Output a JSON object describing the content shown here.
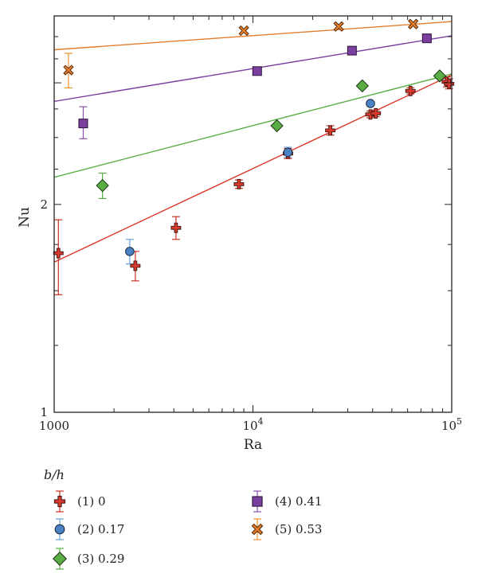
{
  "chart_data": {
    "type": "scatter",
    "title": "",
    "xlabel": "Ra",
    "ylabel": "Nu",
    "xscale": "log",
    "yscale": "log",
    "xlim": [
      1000,
      100000
    ],
    "ylim": [
      1,
      3.75
    ],
    "xticks": [
      {
        "value": 1000,
        "label": "1000"
      },
      {
        "value": 10000,
        "label": "10",
        "sup": "4"
      },
      {
        "value": 100000,
        "label": "10",
        "sup": "5"
      }
    ],
    "yticks": [
      {
        "value": 1,
        "label": "1"
      },
      {
        "value": 2,
        "label": "2"
      }
    ],
    "grid": false,
    "legend_title": "b/h",
    "legend_placement": "bottom",
    "series": [
      {
        "name": "(1) 0",
        "marker": "cross",
        "color": "#d93a2b",
        "err_color": "#c83224",
        "points": [
          {
            "x": 1050,
            "y": 1.7,
            "lo": 1.48,
            "hi": 1.9
          },
          {
            "x": 2560,
            "y": 1.63,
            "lo": 1.55,
            "hi": 1.71
          },
          {
            "x": 4100,
            "y": 1.85,
            "lo": 1.78,
            "hi": 1.92
          },
          {
            "x": 8500,
            "y": 2.14,
            "lo": 2.11,
            "hi": 2.17
          },
          {
            "x": 15000,
            "y": 2.37,
            "lo": 2.33,
            "hi": 2.41
          },
          {
            "x": 24500,
            "y": 2.56,
            "lo": 2.52,
            "hi": 2.6
          },
          {
            "x": 39000,
            "y": 2.7,
            "lo": 2.67,
            "hi": 2.73
          },
          {
            "x": 41500,
            "y": 2.71,
            "lo": 2.68,
            "hi": 2.74
          },
          {
            "x": 62000,
            "y": 2.92,
            "lo": 2.89,
            "hi": 2.95
          },
          {
            "x": 94500,
            "y": 3.01,
            "lo": 2.96,
            "hi": 3.06
          },
          {
            "x": 97000,
            "y": 2.99,
            "lo": 2.94,
            "hi": 3.04
          }
        ],
        "fit": {
          "x": [
            1000,
            100000
          ],
          "y": [
            1.65,
            3.08
          ]
        }
      },
      {
        "name": "(2) 0.17",
        "marker": "circle",
        "color": "#4b82c3",
        "err_color": "#6a9fd6",
        "points": [
          {
            "x": 2400,
            "y": 1.71,
            "lo": 1.64,
            "hi": 1.78
          },
          {
            "x": 15000,
            "y": 2.38,
            "lo": 2.34,
            "hi": 2.42
          },
          {
            "x": 39000,
            "y": 2.8,
            "lo": 2.78,
            "hi": 2.82
          }
        ]
      },
      {
        "name": "(3) 0.29",
        "marker": "diamond",
        "color": "#5aac44",
        "err_color": "#5aac44",
        "points": [
          {
            "x": 1750,
            "y": 2.13,
            "lo": 2.04,
            "hi": 2.22
          },
          {
            "x": 13200,
            "y": 2.6,
            "lo": 2.58,
            "hi": 2.62
          },
          {
            "x": 35500,
            "y": 2.97,
            "lo": 2.95,
            "hi": 2.99
          },
          {
            "x": 87000,
            "y": 3.07,
            "lo": 3.05,
            "hi": 3.09
          }
        ],
        "fit": {
          "x": [
            1000,
            100000
          ],
          "y": [
            2.19,
            3.09
          ]
        }
      },
      {
        "name": "(4) 0.41",
        "marker": "square",
        "color": "#7b3fa0",
        "err_color": "#8a52b0",
        "points": [
          {
            "x": 1400,
            "y": 2.62,
            "lo": 2.49,
            "hi": 2.77
          },
          {
            "x": 10500,
            "y": 3.12,
            "lo": 3.1,
            "hi": 3.14
          },
          {
            "x": 31500,
            "y": 3.34,
            "lo": 3.32,
            "hi": 3.36
          },
          {
            "x": 75000,
            "y": 3.48,
            "lo": 3.46,
            "hi": 3.5
          }
        ],
        "fit": {
          "x": [
            1000,
            100000
          ],
          "y": [
            2.82,
            3.51
          ]
        }
      },
      {
        "name": "(5) 0.53",
        "marker": "xbox",
        "color": "#e37d2b",
        "err_color": "#f0902f",
        "points": [
          {
            "x": 1180,
            "y": 3.13,
            "lo": 2.95,
            "hi": 3.31
          },
          {
            "x": 9000,
            "y": 3.57,
            "lo": 3.55,
            "hi": 3.59
          },
          {
            "x": 27000,
            "y": 3.62,
            "lo": 3.6,
            "hi": 3.64
          },
          {
            "x": 64000,
            "y": 3.65,
            "lo": 3.63,
            "hi": 3.67
          }
        ],
        "fit": {
          "x": [
            1000,
            100000
          ],
          "y": [
            3.35,
            3.68
          ]
        }
      }
    ]
  }
}
